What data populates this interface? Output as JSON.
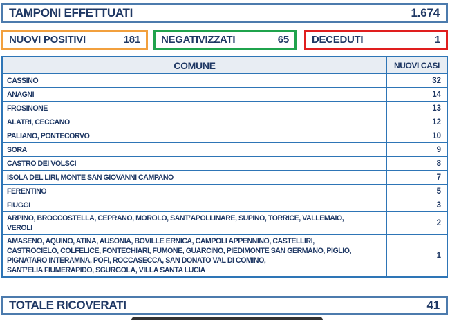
{
  "colors": {
    "text_navy": "#1F3864",
    "steel_box_border": "#4C7BAD",
    "table_border": "#2E75B6",
    "orange_border": "#F2A03D",
    "green_border": "#1FA34C",
    "red_border": "#E01E1E",
    "header_bg": "#E8EDF3",
    "dark_bar": "#333333"
  },
  "summary": {
    "tamponi": {
      "label": "TAMPONI EFFETTUATI",
      "value": "1.674"
    },
    "nuovi_positivi": {
      "label": "NUOVI POSITIVI",
      "value": "181"
    },
    "negativizzati": {
      "label": "NEGATIVIZZATI",
      "value": "65"
    },
    "deceduti": {
      "label": "DECEDUTI",
      "value": "1"
    }
  },
  "table": {
    "headers": {
      "comune": "COMUNE",
      "nuovi_casi": "NUOVI CASI"
    },
    "rows": [
      {
        "comune": "CASSINO",
        "casi": "32"
      },
      {
        "comune": "ANAGNI",
        "casi": "14"
      },
      {
        "comune": "FROSINONE",
        "casi": "13"
      },
      {
        "comune": "ALATRI, CECCANO",
        "casi": "12"
      },
      {
        "comune": "PALIANO, PONTECORVO",
        "casi": "10"
      },
      {
        "comune": "SORA",
        "casi": "9"
      },
      {
        "comune": "CASTRO DEI VOLSCI",
        "casi": "8"
      },
      {
        "comune": "ISOLA DEL LIRI, MONTE SAN GIOVANNI CAMPANO",
        "casi": "7"
      },
      {
        "comune": "FERENTINO",
        "casi": "5"
      },
      {
        "comune": "FIUGGI",
        "casi": "3"
      },
      {
        "comune": "ARPINO, BROCCOSTELLA, CEPRANO, MOROLO, SANT’APOLLINARE, SUPINO, TORRICE, VALLEMAIO,\nVEROLI",
        "casi": "2"
      },
      {
        "comune": "AMASENO, AQUINO, ATINA, AUSONIA, BOVILLE ERNICA, CAMPOLI APPENNINO, CASTELLIRI,\nCASTROCIELO, COLFELICE, FONTECHIARI, FUMONE, GUARCINO, PIEDIMONTE SAN GERMANO, PIGLIO,\nPIGNATARO INTERAMNA, POFI, ROCCASECCA, SAN DONATO VAL DI COMINO,\nSANT’ELIA FIUMERAPIDO, SGURGOLA, VILLA SANTA LUCIA",
        "casi": "1"
      }
    ]
  },
  "footer": {
    "totale_ricoverati": {
      "label": "TOTALE RICOVERATI",
      "value": "41"
    }
  }
}
